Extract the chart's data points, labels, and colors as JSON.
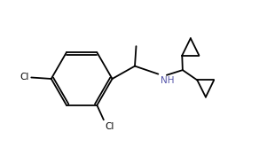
{
  "bg_color": "#ffffff",
  "line_color": "#000000",
  "nh_color": "#5555aa",
  "line_width": 1.3,
  "font_size": 7.5,
  "figsize": [
    3.01,
    1.66
  ],
  "dpi": 100,
  "xlim": [
    0,
    10
  ],
  "ylim": [
    0,
    5.5
  ]
}
